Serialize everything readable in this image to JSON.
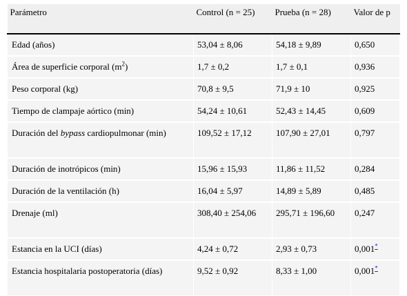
{
  "table": {
    "headers": [
      "Parámetro",
      "Control (n = 25)",
      "Prueba (n = 28)",
      "Valor de p"
    ],
    "rows": [
      {
        "param": "Edad (años)",
        "control": "53,04 ± 8,06",
        "test": "54,18 ± 9,89",
        "p": "0,650"
      },
      {
        "param_pre": "Área de superficie corporal (m",
        "param_sup": "2",
        "param_post": ")",
        "control": "1,7 ± 0,2",
        "test": "1,7 ± 0,1",
        "p": "0,936"
      },
      {
        "param": "Peso corporal (kg)",
        "control": "70,8 ± 9,5",
        "test": "71,9 ± 10",
        "p": "0,925"
      },
      {
        "param": "Tiempo de clampaje aórtico (min)",
        "control": "54,24 ± 10,61",
        "test": "52,43 ± 14,45",
        "p": "0,609"
      },
      {
        "param_pre": "Duración del ",
        "param_em": "bypass",
        "param_post": " cardiopulmonar (min)",
        "control": "109,52 ± 17,12",
        "test": "107,90 ± 27,01",
        "p": "0,797"
      },
      {
        "param": "Duración de inotrópicos (min)",
        "control": "15,96 ± 15,93",
        "test": "11,86 ± 11,52",
        "p": "0,284"
      },
      {
        "param": "Duración de la ventilación (h)",
        "control": "16,04 ± 5,97",
        "test": "14,89 ± 5,89",
        "p": "0,485"
      },
      {
        "param": "Drenaje (ml)",
        "control": "308,40 ± 254,06",
        "test": "295,71 ± 196,60",
        "p": "0,247"
      },
      {
        "param": "Estancia en la UCI (días)",
        "control": "4,24 ± 0,72",
        "test": "2,93 ± 0,73",
        "p": "0,001",
        "mark": "*"
      },
      {
        "param": "Estancia hospitalaria postoperatoria (días)",
        "control": "9,52 ± 0,92",
        "test": "8,33 ± 1,00",
        "p": "0,001",
        "mark": "*"
      }
    ]
  }
}
